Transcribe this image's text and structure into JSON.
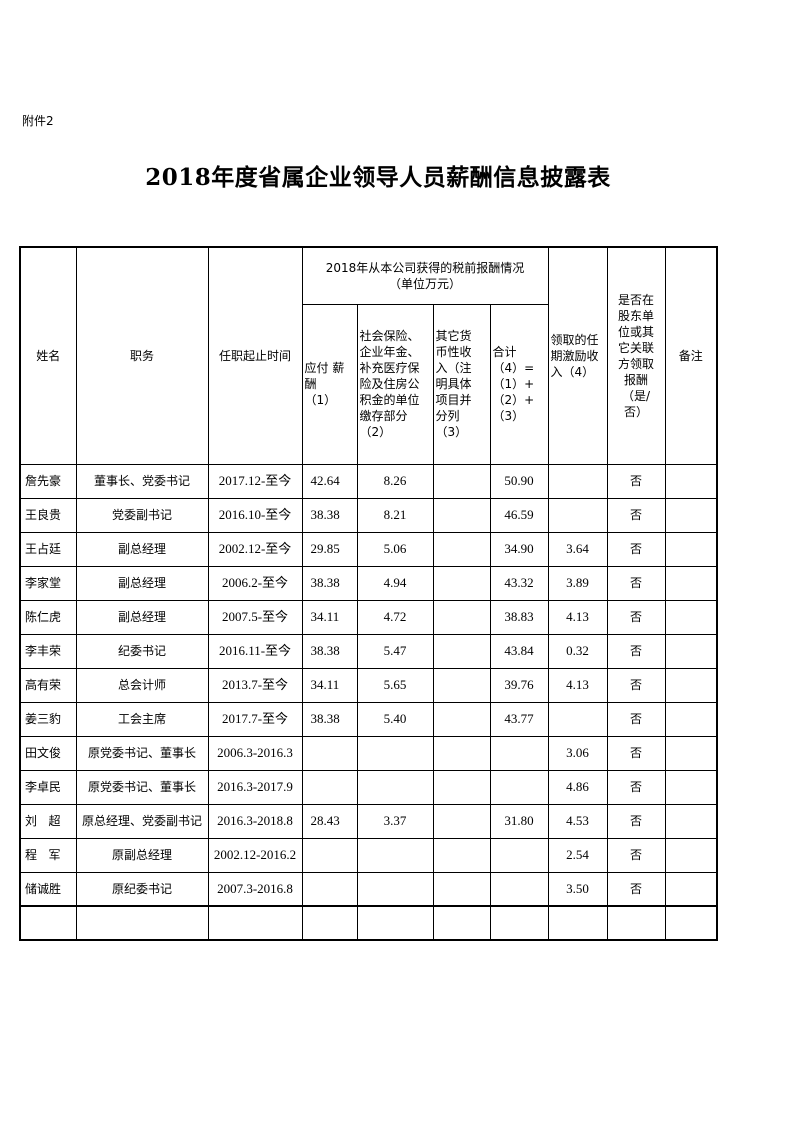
{
  "attachment_label": "附件2",
  "title": "2018年度省属企业领导人员薪酬信息披露表",
  "header": {
    "name": "姓名",
    "position": "职务",
    "term": "任职起止时间",
    "group": "2018年从本公司获得的税前报酬情况\n（单位万元）",
    "salary": "应付 薪\n酬\n（1）",
    "insurance": "社会保险、\n企业年金、\n补充医疗保\n险及住房公\n积金的单位\n缴存部分\n（2）",
    "other": "其它货\n币性收\n入（注\n明具体\n项目并\n分列\n（3）",
    "total": "合计\n（4）=\n（1）+\n（2）+\n（3）",
    "incentive": "领取的任\n期激励收\n入（4）",
    "shareholder": "是否在\n股东单\n位或其\n它关联\n方领取\n报酬\n（是/\n否）",
    "remark": "备注"
  },
  "rows": [
    {
      "name": "詹先豪",
      "position": "董事长、党委书记",
      "term": "2017.12-至今",
      "salary": "42.64",
      "insurance": "8.26",
      "other": "",
      "total": "50.90",
      "incentive": "",
      "shareholder": "否",
      "remark": ""
    },
    {
      "name": "王良贵",
      "position": "党委副书记",
      "term": "2016.10-至今",
      "salary": "38.38",
      "insurance": "8.21",
      "other": "",
      "total": "46.59",
      "incentive": "",
      "shareholder": "否",
      "remark": ""
    },
    {
      "name": "王占廷",
      "position": "副总经理",
      "term": "2002.12-至今",
      "salary": "29.85",
      "insurance": "5.06",
      "other": "",
      "total": "34.90",
      "incentive": "3.64",
      "shareholder": "否",
      "remark": ""
    },
    {
      "name": "李家堂",
      "position": "副总经理",
      "term": "2006.2-至今",
      "salary": "38.38",
      "insurance": "4.94",
      "other": "",
      "total": "43.32",
      "incentive": "3.89",
      "shareholder": "否",
      "remark": ""
    },
    {
      "name": "陈仁虎",
      "position": "副总经理",
      "term": "2007.5-至今",
      "salary": "34.11",
      "insurance": "4.72",
      "other": "",
      "total": "38.83",
      "incentive": "4.13",
      "shareholder": "否",
      "remark": ""
    },
    {
      "name": "李丰荣",
      "position": "纪委书记",
      "term": "2016.11-至今",
      "salary": "38.38",
      "insurance": "5.47",
      "other": "",
      "total": "43.84",
      "incentive": "0.32",
      "shareholder": "否",
      "remark": ""
    },
    {
      "name": "高有荣",
      "position": "总会计师",
      "term": "2013.7-至今",
      "salary": "34.11",
      "insurance": "5.65",
      "other": "",
      "total": "39.76",
      "incentive": "4.13",
      "shareholder": "否",
      "remark": ""
    },
    {
      "name": "姜三豹",
      "position": "工会主席",
      "term": "2017.7-至今",
      "salary": "38.38",
      "insurance": "5.40",
      "other": "",
      "total": "43.77",
      "incentive": "",
      "shareholder": "否",
      "remark": ""
    },
    {
      "name": "田文俊",
      "position": "原党委书记、董事长",
      "term": "2006.3-2016.3",
      "salary": "",
      "insurance": "",
      "other": "",
      "total": "",
      "incentive": "3.06",
      "shareholder": "否",
      "remark": ""
    },
    {
      "name": "李卓民",
      "position": "原党委书记、董事长",
      "term": "2016.3-2017.9",
      "salary": "",
      "insurance": "",
      "other": "",
      "total": "",
      "incentive": "4.86",
      "shareholder": "否",
      "remark": ""
    },
    {
      "name": "刘   超",
      "position": "原总经理、党委副书记",
      "term": "2016.3-2018.8",
      "salary": "28.43",
      "insurance": "3.37",
      "other": "",
      "total": "31.80",
      "incentive": "4.53",
      "shareholder": "否",
      "remark": ""
    },
    {
      "name": "程   军",
      "position": "原副总经理",
      "term": "2002.12-2016.2",
      "salary": "",
      "insurance": "",
      "other": "",
      "total": "",
      "incentive": "2.54",
      "shareholder": "否",
      "remark": ""
    },
    {
      "name": "储诚胜",
      "position": "原纪委书记",
      "term": "2007.3-2016.8",
      "salary": "",
      "insurance": "",
      "other": "",
      "total": "",
      "incentive": "3.50",
      "shareholder": "否",
      "remark": ""
    }
  ]
}
